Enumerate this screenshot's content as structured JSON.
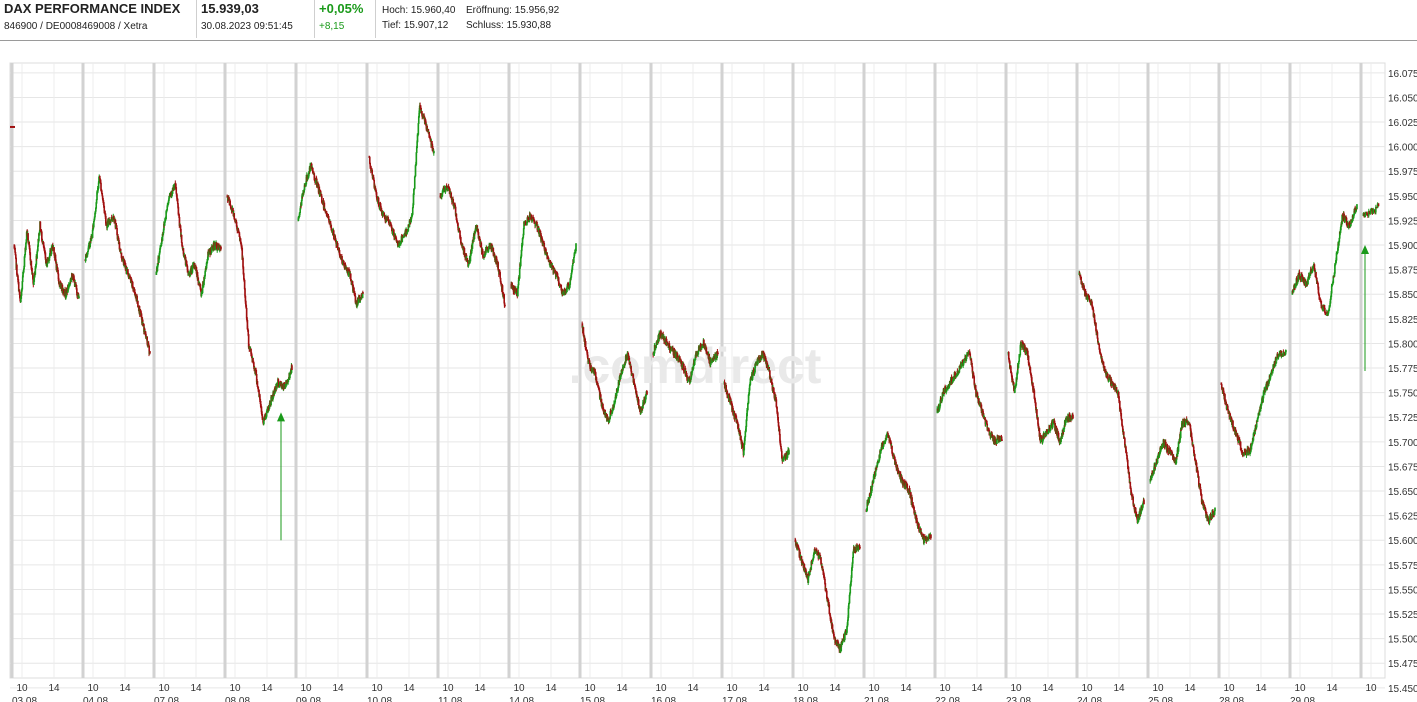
{
  "header": {
    "title": "DAX PERFORMANCE INDEX",
    "subtitle": "846900 / DE0008469008 / Xetra",
    "price": "15.939,03",
    "timestamp": "30.08.2023 09:51:45",
    "change_pct": "+0,05%",
    "change_abs": "+8,15",
    "high": "Hoch: 15.960,40",
    "open": "Eröffnung: 15.956,92",
    "low": "Tief: 15.907,12",
    "close": "Schluss: 15.930,88",
    "change_color": "#1a9a1a"
  },
  "watermark": ".comdirect",
  "chart_data": {
    "type": "line",
    "style": "candlestick-intraday",
    "ylim": [
      15460,
      16085
    ],
    "y_ticks": [
      "16.075",
      "16.050",
      "16.025",
      "16.000",
      "15.975",
      "15.950",
      "15.925",
      "15.900",
      "15.875",
      "15.850",
      "15.825",
      "15.800",
      "15.775",
      "15.750",
      "15.725",
      "15.700",
      "15.675",
      "15.650",
      "15.625",
      "15.600",
      "15.575",
      "15.550",
      "15.525",
      "15.500",
      "15.475",
      "15.450"
    ],
    "y_tick_values": [
      16075,
      16050,
      16025,
      16000,
      15975,
      15950,
      15925,
      15900,
      15875,
      15850,
      15825,
      15800,
      15775,
      15750,
      15725,
      15700,
      15675,
      15650,
      15625,
      15600,
      15575,
      15550,
      15525,
      15500,
      15475,
      15450
    ],
    "days": [
      "03.08.",
      "04.08.",
      "07.08.",
      "08.08.",
      "09.08.",
      "10.08.",
      "11.08.",
      "14.08.",
      "15.08.",
      "16.08.",
      "17.08.",
      "18.08.",
      "21.08.",
      "22.08.",
      "23.08.",
      "24.08.",
      "25.08.",
      "28.08.",
      "29.08."
    ],
    "hour_labels": [
      "10",
      "14"
    ],
    "last_hour_label": "10",
    "grid": true,
    "series": [
      {
        "up_color": "#1a9a1a",
        "down_color": "#a01010",
        "days": [
          [
            15900,
            15840,
            15915,
            15860,
            15920,
            15880,
            15900,
            15860,
            15850,
            15870,
            15845
          ],
          [
            15885,
            15910,
            15970,
            15920,
            15930,
            15890,
            15870,
            15850,
            15820,
            15790
          ],
          [
            15870,
            15910,
            15950,
            15960,
            15900,
            15870,
            15880,
            15850,
            15890,
            15900,
            15895
          ],
          [
            15950,
            15930,
            15900,
            15800,
            15770,
            15720,
            15740,
            15760,
            15755,
            15775
          ],
          [
            15925,
            15960,
            15980,
            15960,
            15940,
            15920,
            15900,
            15880,
            15870,
            15840,
            15850
          ],
          [
            15990,
            15950,
            15930,
            15920,
            15900,
            15910,
            15930,
            16040,
            16020,
            15995
          ],
          [
            15950,
            15960,
            15940,
            15900,
            15880,
            15920,
            15890,
            15900,
            15880,
            15840
          ],
          [
            15860,
            15850,
            15920,
            15930,
            15920,
            15900,
            15880,
            15870,
            15850,
            15860,
            15900
          ],
          [
            15820,
            15780,
            15770,
            15740,
            15720,
            15740,
            15770,
            15790,
            15760,
            15730,
            15750
          ],
          [
            15790,
            15810,
            15800,
            15790,
            15780,
            15760,
            15790,
            15800,
            15780,
            15790
          ],
          [
            15760,
            15740,
            15720,
            15690,
            15760,
            15780,
            15790,
            15770,
            15740,
            15680,
            15690
          ],
          [
            15600,
            15580,
            15560,
            15590,
            15580,
            15540,
            15500,
            15490,
            15510,
            15590,
            15595
          ],
          [
            15630,
            15660,
            15690,
            15710,
            15680,
            15660,
            15650,
            15620,
            15600,
            15605
          ],
          [
            15730,
            15750,
            15760,
            15770,
            15780,
            15790,
            15750,
            15730,
            15710,
            15700,
            15705
          ],
          [
            15790,
            15750,
            15800,
            15790,
            15750,
            15700,
            15710,
            15720,
            15700,
            15725,
            15725
          ],
          [
            15870,
            15850,
            15840,
            15800,
            15770,
            15760,
            15750,
            15700,
            15650,
            15620,
            15640
          ],
          [
            15660,
            15680,
            15700,
            15690,
            15680,
            15720,
            15720,
            15680,
            15640,
            15620,
            15630
          ],
          [
            15760,
            15730,
            15710,
            15690,
            15690,
            15720,
            15750,
            15770,
            15790,
            15790
          ],
          [
            15850,
            15870,
            15860,
            15880,
            15840,
            15830,
            15880,
            15930,
            15920,
            15940
          ],
          [
            15930,
            15939
          ]
        ]
      }
    ],
    "annotations": [
      {
        "type": "arrow",
        "color": "#1a9a1a",
        "x_day": "08.08.",
        "from": 15600,
        "to": 15730
      },
      {
        "type": "arrow",
        "color": "#1a9a1a",
        "x_day": "30.08.",
        "from": 15772,
        "to": 15900
      },
      {
        "type": "marker",
        "color": "#a01010",
        "value": 16020
      }
    ]
  }
}
